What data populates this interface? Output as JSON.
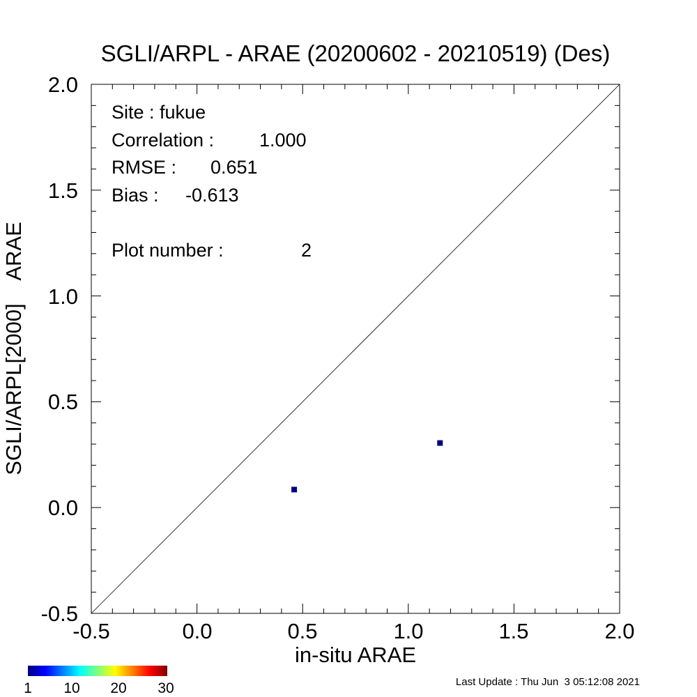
{
  "chart_data": {
    "type": "scatter",
    "title": "SGLI/ARPL - ARAE (20200602 - 20210519) (Des)",
    "xlabel": "in-situ ARAE",
    "ylabel": "SGLI/ARPL[2000]    ARAE",
    "xlim": [
      -0.5,
      2.0
    ],
    "ylim": [
      -0.5,
      2.0
    ],
    "x_ticks": [
      "-0.5",
      "0.0",
      "0.5",
      "1.0",
      "1.5",
      "2.0"
    ],
    "y_ticks": [
      "-0.5",
      "0.0",
      "0.5",
      "1.0",
      "1.5",
      "2.0"
    ],
    "reference_line": "1:1",
    "grid": false,
    "points": [
      {
        "x": 0.46,
        "y": 0.085
      },
      {
        "x": 1.15,
        "y": 0.305
      }
    ],
    "point_color": "#00007f",
    "stats": [
      {
        "label": "Site : fukue",
        "value": ""
      },
      {
        "label": "Correlation :",
        "value": "1.000"
      },
      {
        "label": "RMSE :",
        "value": "0.651"
      },
      {
        "label": "Bias :",
        "value": "-0.613"
      },
      {
        "label": "Plot number :",
        "value": "2"
      }
    ],
    "colorbar": {
      "ticks": [
        "1",
        "10",
        "20",
        "30"
      ],
      "min": 1,
      "max": 30
    }
  },
  "footer": {
    "last_update": "Last Update : Thu Jun  3 05:12:08 2021"
  }
}
